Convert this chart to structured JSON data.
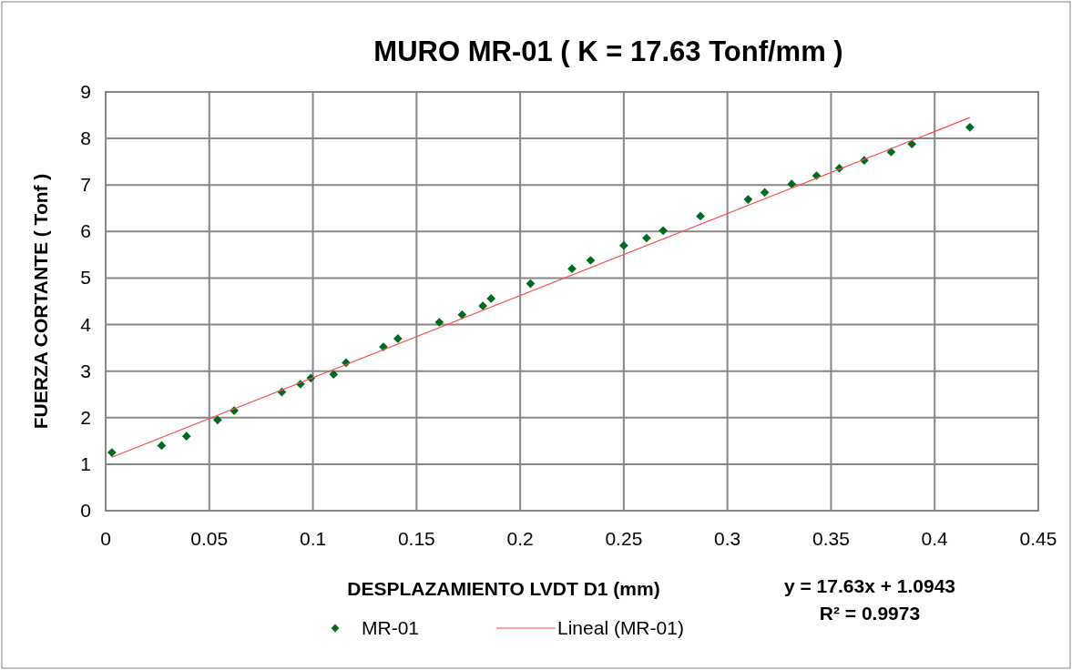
{
  "chart_data": {
    "type": "scatter",
    "title": "MURO MR-01  (  K = 17.63 Tonf/mm )",
    "xlabel": "DESPLAZAMIENTO LVDT D1 (mm)",
    "ylabel": "FUERZA CORTANTE ( Tonf )",
    "xlim": [
      0,
      0.45
    ],
    "xticks": [
      0,
      0.05,
      0.1,
      0.15,
      0.2,
      0.25,
      0.3,
      0.35,
      0.4,
      0.45
    ],
    "ylim": [
      0,
      9
    ],
    "yticks": [
      0,
      1,
      2,
      3,
      4,
      5,
      6,
      7,
      8,
      9
    ],
    "grid": true,
    "legend": "bottom",
    "annotations": [
      "y = 17.63x + 1.0943",
      "R² = 0.9973"
    ],
    "series": [
      {
        "name": "MR-01",
        "marker": "diamond",
        "color": "#006b1e",
        "x": [
          0.003,
          0.027,
          0.039,
          0.054,
          0.062,
          0.085,
          0.094,
          0.099,
          0.11,
          0.116,
          0.134,
          0.141,
          0.161,
          0.172,
          0.182,
          0.186,
          0.205,
          0.225,
          0.234,
          0.25,
          0.261,
          0.269,
          0.287,
          0.31,
          0.318,
          0.331,
          0.343,
          0.354,
          0.366,
          0.379,
          0.389,
          0.417
        ],
        "values": [
          1.25,
          1.4,
          1.6,
          1.95,
          2.15,
          2.55,
          2.72,
          2.85,
          2.93,
          3.18,
          3.52,
          3.7,
          4.05,
          4.21,
          4.4,
          4.56,
          4.88,
          5.2,
          5.38,
          5.7,
          5.86,
          6.02,
          6.33,
          6.69,
          6.84,
          7.02,
          7.2,
          7.36,
          7.53,
          7.71,
          7.88,
          8.24
        ]
      },
      {
        "name": "Lineal (MR-01)",
        "type": "line",
        "marker": "none",
        "line_style": "solid",
        "color": "#ff4d4d",
        "x": [
          0.003,
          0.417
        ],
        "values": [
          1.15,
          8.45
        ]
      }
    ]
  }
}
